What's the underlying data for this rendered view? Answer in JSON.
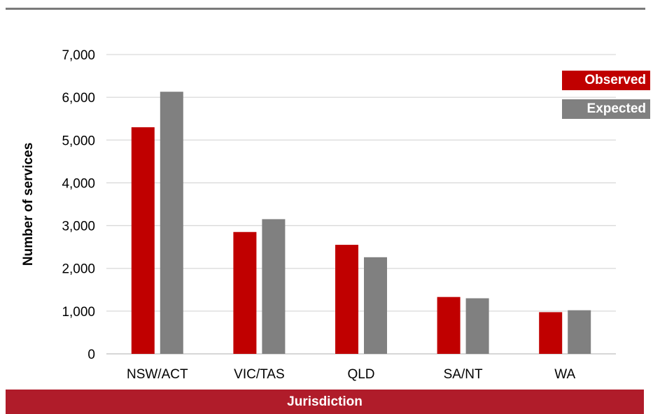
{
  "chart_data": {
    "type": "bar",
    "categories": [
      "NSW/ACT",
      "VIC/TAS",
      "QLD",
      "SA/NT",
      "WA"
    ],
    "series": [
      {
        "name": "Observed",
        "color": "#c00000",
        "values": [
          5300,
          2850,
          2550,
          1330,
          975
        ]
      },
      {
        "name": "Expected",
        "color": "#808080",
        "values": [
          6130,
          3150,
          2260,
          1300,
          1020
        ]
      }
    ],
    "xlabel": "Jurisdiction",
    "ylabel": "Number of services",
    "ylim": [
      0,
      7000
    ],
    "yticks": [
      "0",
      "1,000",
      "2,000",
      "3,000",
      "4,000",
      "5,000",
      "6,000",
      "7,000"
    ],
    "grid": true,
    "legend_position": "top-right"
  }
}
